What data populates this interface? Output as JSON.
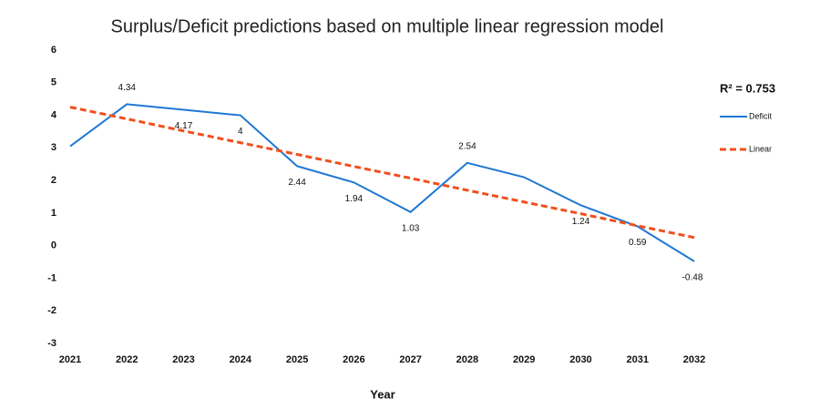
{
  "chart_data": {
    "type": "line",
    "title": "Surplus/Deficit predictions based on multiple linear regression model",
    "x_label": "Year",
    "annotation": "R² = 0.753",
    "categories": [
      "2021",
      "2022",
      "2023",
      "2024",
      "2025",
      "2026",
      "2027",
      "2028",
      "2029",
      "2030",
      "2031",
      "2032"
    ],
    "series": [
      {
        "name": "Deficit",
        "color": "#1f77d4",
        "style": "solid",
        "values": [
          3.05,
          4.34,
          4.17,
          4,
          2.44,
          1.94,
          1.03,
          2.54,
          2.1,
          1.24,
          0.59,
          -0.48
        ],
        "value_labels": [
          null,
          "4.34",
          "4.17",
          "4",
          "2.44",
          "1.94",
          "1.03",
          "2.54",
          null,
          "1.24",
          "0.59",
          "-0.48"
        ]
      },
      {
        "name": "Linear",
        "color": "#f0501e",
        "style": "dashed",
        "values": [
          4.25,
          3.89,
          3.52,
          3.16,
          2.8,
          2.43,
          2.07,
          1.7,
          1.34,
          0.98,
          0.61,
          0.25
        ]
      }
    ],
    "ylim": [
      -3,
      6
    ],
    "yticks": [
      -3,
      -2,
      -1,
      0,
      1,
      2,
      3,
      4,
      5,
      6
    ],
    "grid": false,
    "legend": "right"
  }
}
